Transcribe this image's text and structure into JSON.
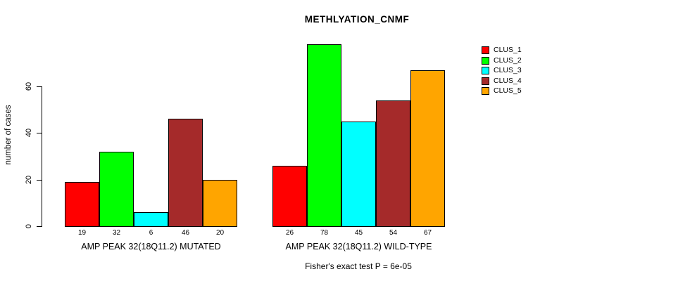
{
  "title": "METHLYATION_CNMF",
  "footer": "Fisher's exact test P = 6e-05",
  "chart_data": {
    "type": "bar",
    "title": "METHLYATION_CNMF",
    "xlabel": "",
    "ylabel": "number of cases",
    "yticks": [
      0,
      20,
      40,
      60
    ],
    "ylim": [
      0,
      80
    ],
    "grid": false,
    "legend_position": "right",
    "legend": [
      {
        "label": "CLUS_1",
        "color": "#FF0000"
      },
      {
        "label": "CLUS_2",
        "color": "#00FF00"
      },
      {
        "label": "CLUS_3",
        "color": "#00FFFF"
      },
      {
        "label": "CLUS_4",
        "color": "#A52A2A"
      },
      {
        "label": "CLUS_5",
        "color": "#FFA500"
      }
    ],
    "groups": [
      {
        "label": "AMP PEAK 32(18Q11.2) MUTATED",
        "series": [
          "CLUS_1",
          "CLUS_2",
          "CLUS_3",
          "CLUS_4",
          "CLUS_5"
        ],
        "values": [
          19,
          32,
          6,
          46,
          20
        ],
        "value_labels": [
          "19",
          "32",
          "6",
          "46",
          "20"
        ]
      },
      {
        "label": "AMP PEAK 32(18Q11.2) WILD-TYPE",
        "series": [
          "CLUS_1",
          "CLUS_2",
          "CLUS_3",
          "CLUS_4",
          "CLUS_5"
        ],
        "values": [
          26,
          78,
          45,
          54,
          67
        ],
        "value_labels": [
          "26",
          "78",
          "45",
          "54",
          "67"
        ]
      }
    ],
    "annotation": "Fisher's exact test P = 6e-05"
  }
}
